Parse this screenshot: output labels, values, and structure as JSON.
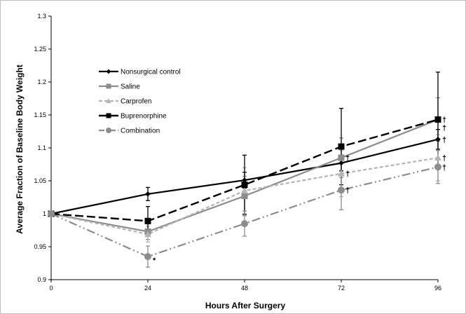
{
  "chart_data": {
    "type": "line",
    "title": "",
    "xlabel": "Hours After Surgery",
    "ylabel": "Average Fraction of Baseline Body Weight",
    "x": [
      0,
      24,
      48,
      72,
      96
    ],
    "x_tick_labels": [
      "0",
      "24",
      "48",
      "72",
      "96"
    ],
    "xlim": [
      0,
      96
    ],
    "ylim": [
      0.9,
      1.3
    ],
    "y_ticks": [
      0.9,
      0.95,
      1.0,
      1.05,
      1.1,
      1.15,
      1.2,
      1.25,
      1.3
    ],
    "y_tick_labels": [
      "0.9",
      "0.95",
      "1",
      "1.05",
      "1.1",
      "1.15",
      "1.2",
      "1.25",
      "1.3"
    ],
    "grid": false,
    "legend_position": "upper-left",
    "series": [
      {
        "name": "Nonsurgical control",
        "color": "#000000",
        "dash": "solid",
        "marker": "diamond",
        "values": [
          1.0,
          1.03,
          1.051,
          1.077,
          1.113
        ],
        "errors": [
          0.0,
          0.01,
          0.012,
          0.012,
          0.015
        ]
      },
      {
        "name": "Saline",
        "color": "#8c8c8c",
        "dash": "solid",
        "marker": "square",
        "values": [
          1.0,
          0.973,
          1.027,
          1.085,
          1.143
        ],
        "errors": [
          0.0,
          0.012,
          0.03,
          0.03,
          0.033
        ]
      },
      {
        "name": "Carprofen",
        "color": "#b4b4b4",
        "dash": "short-dash",
        "marker": "triangle",
        "values": [
          1.0,
          0.969,
          1.035,
          1.061,
          1.085
        ],
        "errors": [
          0.0,
          0.012,
          0.035,
          0.035,
          0.035
        ]
      },
      {
        "name": "Buprenorphine",
        "color": "#000000",
        "dash": "long-dash",
        "marker": "square",
        "values": [
          1.0,
          0.989,
          1.044,
          1.102,
          1.143
        ],
        "errors": [
          0.0,
          0.022,
          0.045,
          0.058,
          0.072
        ]
      },
      {
        "name": "Combination",
        "color": "#8c8c8c",
        "dash": "dash-dot-dot",
        "marker": "circle",
        "values": [
          1.0,
          0.935,
          0.985,
          1.036,
          1.071
        ],
        "errors": [
          0.0,
          0.016,
          0.019,
          0.03,
          0.025
        ]
      }
    ],
    "annotations": [
      {
        "text": "*",
        "x": 24,
        "y": 0.935
      },
      {
        "text": "†",
        "x": 96,
        "y": 1.143
      },
      {
        "text": "†",
        "x": 96,
        "y": 1.131
      },
      {
        "text": "†",
        "x": 96,
        "y": 1.113
      },
      {
        "text": "†",
        "x": 96,
        "y": 1.085
      },
      {
        "text": "†",
        "x": 96,
        "y": 1.071
      },
      {
        "text": "†",
        "x": 72,
        "y": 1.085
      },
      {
        "text": "†",
        "x": 72,
        "y": 1.061
      },
      {
        "text": "†",
        "x": 72,
        "y": 1.036
      }
    ]
  }
}
